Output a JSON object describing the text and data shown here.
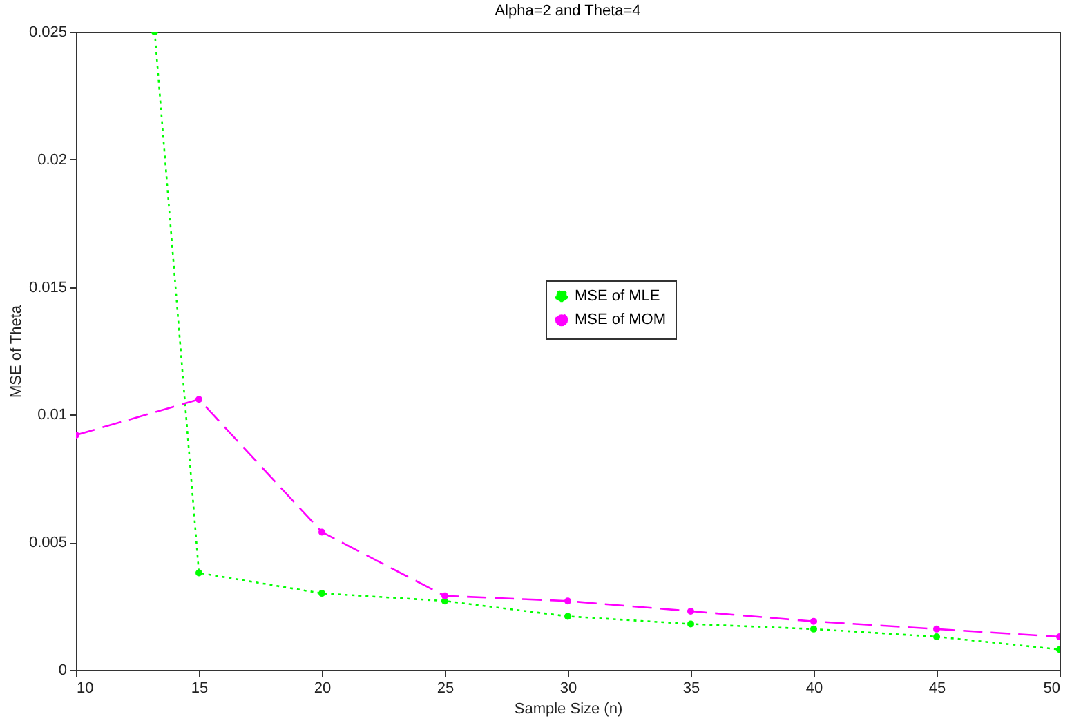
{
  "chart_data": {
    "type": "line",
    "title": "Alpha=2 and Theta=4",
    "xlabel": "Sample Size (n)",
    "ylabel": "MSE of Theta",
    "x": [
      10,
      15,
      20,
      25,
      30,
      35,
      40,
      45,
      50
    ],
    "series": [
      {
        "name": "MSE of MLE",
        "color": "#00ff00",
        "line_style": "dotted",
        "x": [
          13.2,
          15,
          20,
          25,
          30,
          35,
          40,
          45,
          50
        ],
        "values": [
          0.025,
          0.0038,
          0.003,
          0.0027,
          0.0021,
          0.0018,
          0.0016,
          0.0013,
          0.0008
        ]
      },
      {
        "name": "MSE of MOM",
        "color": "#ff00ff",
        "line_style": "dashed",
        "values": [
          0.0092,
          0.0106,
          0.0054,
          0.0029,
          0.0027,
          0.0023,
          0.0019,
          0.0016,
          0.0013
        ]
      }
    ],
    "xlim": [
      10,
      50
    ],
    "xticks": [
      10,
      15,
      20,
      25,
      30,
      35,
      40,
      45,
      50
    ],
    "ylim": [
      0,
      0.025
    ],
    "yticks": [
      0,
      0.005,
      0.01,
      0.015,
      0.02,
      0.025
    ],
    "grid": false,
    "legend": "top right",
    "marker": "circle"
  }
}
